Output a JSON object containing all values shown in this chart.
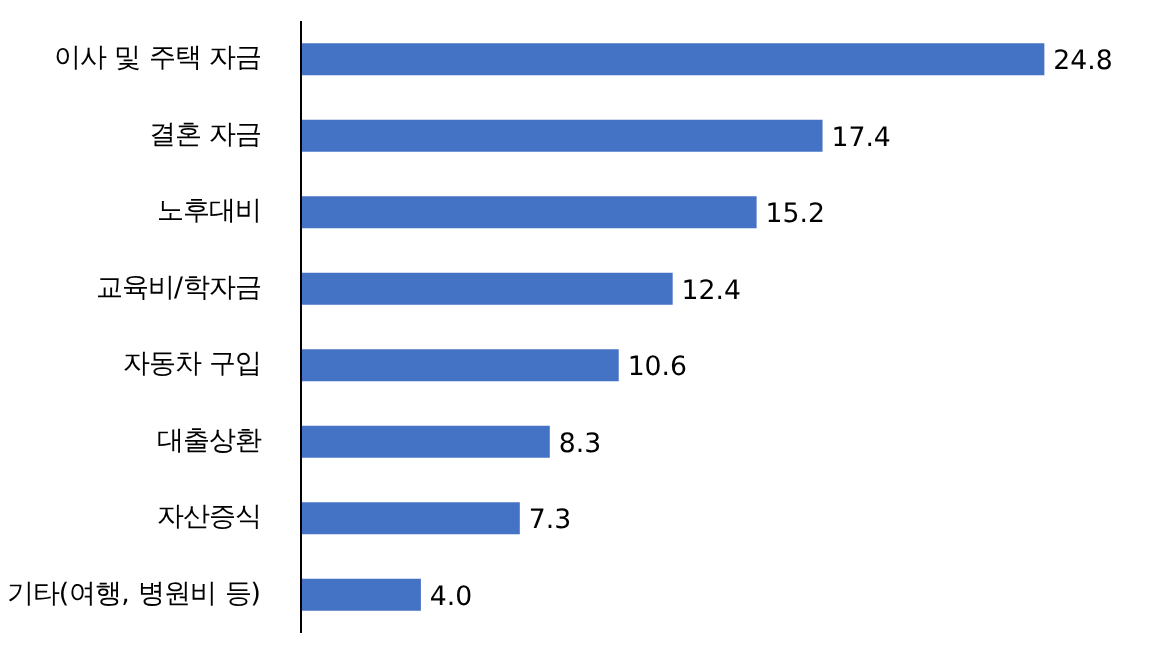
{
  "chart_data": {
    "type": "bar",
    "orientation": "horizontal",
    "categories": [
      "이사 및 주택 자금",
      "결혼 자금",
      "노후대비",
      "교육비/학자금",
      "자동차 구입",
      "대출상환",
      "자산증식",
      "기타(여행, 병원비 등)"
    ],
    "values": [
      24.8,
      17.4,
      15.2,
      12.4,
      10.6,
      8.3,
      7.3,
      4.0
    ],
    "value_labels": [
      "24.8",
      "17.4",
      "15.2",
      "12.4",
      "10.6",
      "8.3",
      "7.3",
      "4.0"
    ],
    "color": "#4472c4",
    "grid": false
  }
}
